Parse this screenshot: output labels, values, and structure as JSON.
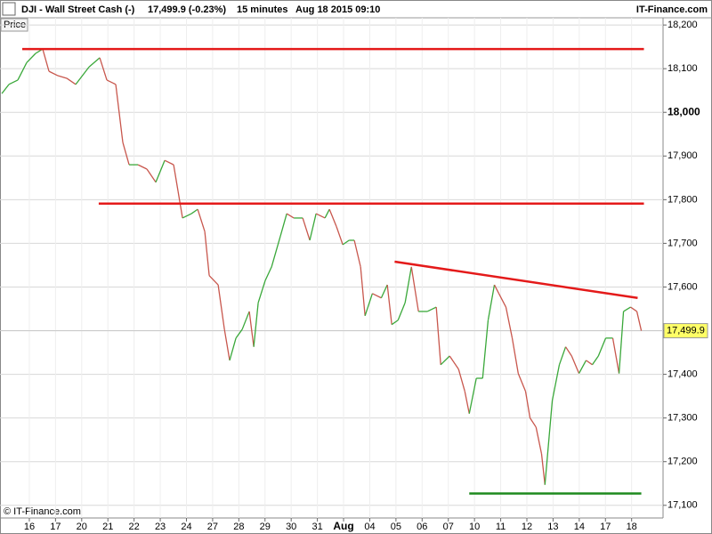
{
  "header": {
    "symbol": "DJI - Wall Street Cash (-)",
    "quote": "17,499.9 (-0.23%)",
    "interval": "15 minutes",
    "datetime": "Aug 18 2015 09:10",
    "site": "IT-Finance.com"
  },
  "chart_data": {
    "type": "line",
    "panel_label": "Price",
    "copyright": "© IT-Finance.com",
    "grid": true,
    "up_color": "#3aa83a",
    "down_color": "#c8574d",
    "xlim": [
      -1.12,
      24.2
    ],
    "xticks": [
      {
        "value": 0,
        "label": "16"
      },
      {
        "value": 1,
        "label": "17"
      },
      {
        "value": 2,
        "label": "20"
      },
      {
        "value": 3,
        "label": "21"
      },
      {
        "value": 4,
        "label": "22"
      },
      {
        "value": 5,
        "label": "23"
      },
      {
        "value": 6,
        "label": "24"
      },
      {
        "value": 7,
        "label": "27"
      },
      {
        "value": 8,
        "label": "28"
      },
      {
        "value": 9,
        "label": "29"
      },
      {
        "value": 10,
        "label": "30"
      },
      {
        "value": 11,
        "label": "31"
      },
      {
        "value": 12,
        "label": "Aug"
      },
      {
        "value": 13,
        "label": "04"
      },
      {
        "value": 14,
        "label": "05"
      },
      {
        "value": 15,
        "label": "06"
      },
      {
        "value": 16,
        "label": "07"
      },
      {
        "value": 17,
        "label": "10"
      },
      {
        "value": 18,
        "label": "11"
      },
      {
        "value": 19,
        "label": "12"
      },
      {
        "value": 20,
        "label": "13"
      },
      {
        "value": 21,
        "label": "14"
      },
      {
        "value": 22,
        "label": "17"
      },
      {
        "value": 23,
        "label": "18"
      }
    ],
    "ylim": [
      17071,
      18241
    ],
    "yticks": [
      {
        "value": 17100,
        "label": "17,100"
      },
      {
        "value": 17200,
        "label": "17,200"
      },
      {
        "value": 17300,
        "label": "17,300"
      },
      {
        "value": 17400,
        "label": "17,400"
      },
      {
        "value": 17500,
        "label": "17,500"
      },
      {
        "value": 17600,
        "label": "17,600"
      },
      {
        "value": 17700,
        "label": "17,700"
      },
      {
        "value": 17800,
        "label": "17,800"
      },
      {
        "value": 17900,
        "label": "17,900"
      },
      {
        "value": 18000,
        "label": "18,000"
      },
      {
        "value": 18100,
        "label": "18,100"
      },
      {
        "value": 18200,
        "label": "18,200"
      }
    ],
    "last_price": {
      "value": 17499.9,
      "label": "17,499.9"
    },
    "x": [
      -1.05,
      -0.78,
      -0.44,
      -0.1,
      0.24,
      0.51,
      0.75,
      1.09,
      1.43,
      1.77,
      2.28,
      2.69,
      2.96,
      3.3,
      3.57,
      3.81,
      4.15,
      4.49,
      4.83,
      5.17,
      5.51,
      5.68,
      5.85,
      6.19,
      6.43,
      6.7,
      6.87,
      7.21,
      7.45,
      7.65,
      7.89,
      8.13,
      8.4,
      8.57,
      8.74,
      9.01,
      9.25,
      9.59,
      9.83,
      10.1,
      10.44,
      10.71,
      10.95,
      11.29,
      11.46,
      11.73,
      11.97,
      12.21,
      12.41,
      12.65,
      12.82,
      13.1,
      13.44,
      13.67,
      13.84,
      14.08,
      14.35,
      14.59,
      14.86,
      15.2,
      15.54,
      15.71,
      16.05,
      16.39,
      16.63,
      16.8,
      17.07,
      17.31,
      17.52,
      17.76,
      17.93,
      18.2,
      18.44,
      18.67,
      18.95,
      19.12,
      19.35,
      19.56,
      19.69,
      19.97,
      20.24,
      20.48,
      20.71,
      20.99,
      21.26,
      21.5,
      21.73,
      22.01,
      22.28,
      22.52,
      22.69,
      22.96,
      23.2,
      23.37
    ],
    "values": [
      18043,
      18064,
      18074,
      18114,
      18135,
      18145,
      18094,
      18084,
      18078,
      18064,
      18104,
      18125,
      18074,
      18064,
      17931,
      17880,
      17880,
      17870,
      17840,
      17890,
      17880,
      17819,
      17758,
      17768,
      17778,
      17727,
      17626,
      17605,
      17503,
      17432,
      17483,
      17503,
      17544,
      17463,
      17564,
      17615,
      17646,
      17717,
      17768,
      17758,
      17758,
      17707,
      17768,
      17758,
      17778,
      17738,
      17697,
      17707,
      17707,
      17646,
      17534,
      17585,
      17575,
      17605,
      17514,
      17524,
      17564,
      17646,
      17544,
      17544,
      17554,
      17422,
      17442,
      17412,
      17361,
      17310,
      17391,
      17391,
      17524,
      17605,
      17585,
      17554,
      17483,
      17402,
      17361,
      17300,
      17279,
      17218,
      17147,
      17340,
      17422,
      17463,
      17442,
      17402,
      17432,
      17422,
      17442,
      17483,
      17483,
      17402,
      17544,
      17554,
      17544,
      17499.9
    ],
    "trend_lines": [
      {
        "color": "#e41a1a",
        "x": [
          -0.27,
          23.47
        ],
        "y": [
          18145,
          18145
        ]
      },
      {
        "color": "#e41a1a",
        "x": [
          2.65,
          23.47
        ],
        "y": [
          17791,
          17791
        ]
      },
      {
        "color": "#e41a1a",
        "x": [
          13.95,
          23.23
        ],
        "y": [
          17658,
          17575
        ]
      },
      {
        "color": "#1e8a1e",
        "x": [
          16.8,
          23.37
        ],
        "y": [
          17127,
          17127
        ]
      }
    ]
  }
}
